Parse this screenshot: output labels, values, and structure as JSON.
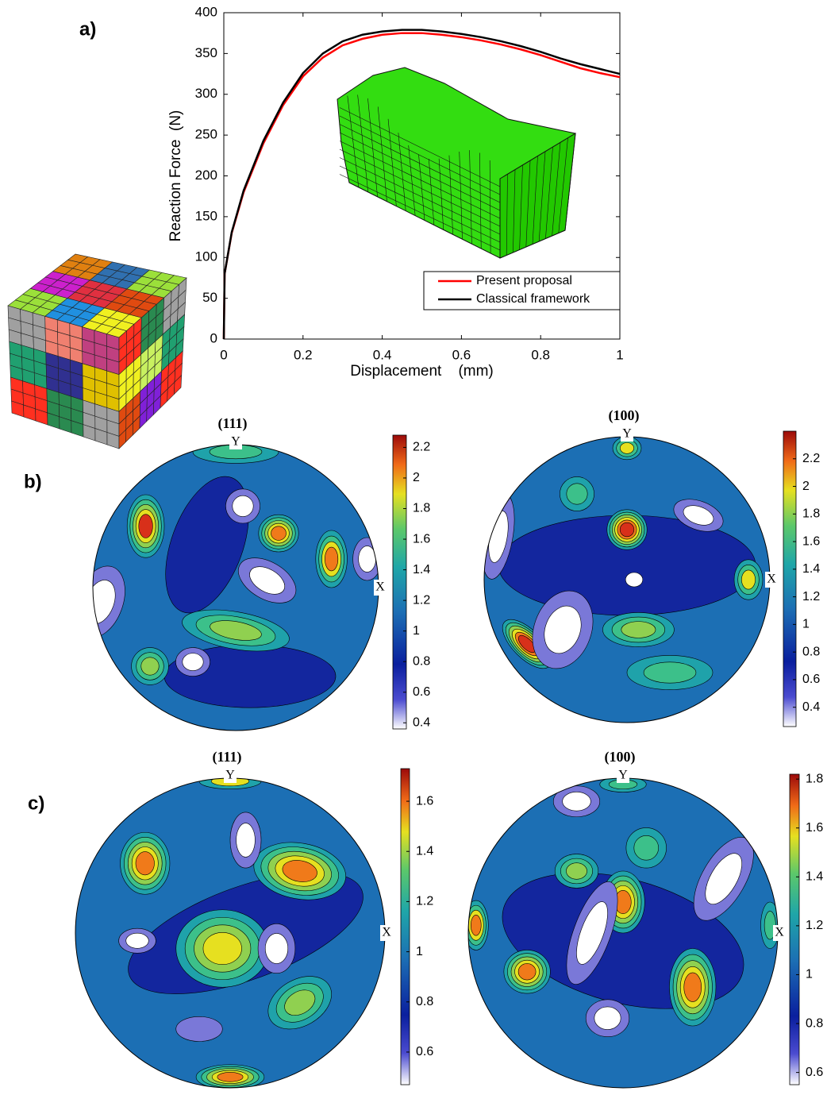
{
  "panel_labels": [
    "a)",
    "b)",
    "c)"
  ],
  "chart_data": [
    {
      "type": "line",
      "xlabel": "Displacement    (mm)",
      "ylabel": "Reaction Force  (N)",
      "x": [
        0,
        0.002,
        0.02,
        0.05,
        0.1,
        0.15,
        0.2,
        0.25,
        0.3,
        0.35,
        0.4,
        0.45,
        0.5,
        0.55,
        0.6,
        0.65,
        0.7,
        0.75,
        0.8,
        0.85,
        0.9,
        0.95,
        1
      ],
      "series": [
        {
          "name": "Present proposal",
          "color": "#ff0000",
          "values": [
            0,
            80,
            130,
            180,
            240,
            287,
            322,
            345,
            360,
            368,
            373,
            375,
            375,
            373,
            370,
            366,
            361,
            355,
            348,
            340,
            332,
            326,
            321
          ]
        },
        {
          "name": "Classical framework",
          "color": "#000000",
          "values": [
            0,
            80,
            131,
            182,
            243,
            290,
            326,
            350,
            365,
            373,
            377,
            379,
            379,
            377,
            374,
            370,
            365,
            359,
            352,
            344,
            337,
            331,
            325
          ]
        }
      ],
      "xlim": [
        0,
        1
      ],
      "ylim": [
        0,
        400
      ],
      "xticks": [
        0,
        0.2,
        0.4,
        0.6,
        0.8,
        1
      ],
      "yticks": [
        0,
        50,
        100,
        150,
        200,
        250,
        300,
        350,
        400
      ],
      "legend": "lower right"
    },
    {
      "type": "pole-figure",
      "title": "(111)",
      "y_axis_label": "Y",
      "x_axis_label": "X",
      "clim": [
        0.36,
        2.28
      ],
      "colorbar_ticks": [
        0.4,
        0.6,
        0.8,
        1,
        1.2,
        1.4,
        1.6,
        1.8,
        2,
        2.2
      ]
    },
    {
      "type": "pole-figure",
      "title": "(100)",
      "y_axis_label": "Y",
      "x_axis_label": "X",
      "clim": [
        0.26,
        2.4
      ],
      "colorbar_ticks": [
        0.4,
        0.6,
        0.8,
        1,
        1.2,
        1.4,
        1.6,
        1.8,
        2,
        2.2
      ]
    },
    {
      "type": "pole-figure",
      "title": "(111)",
      "y_axis_label": "Y",
      "x_axis_label": "X",
      "clim": [
        0.47,
        1.73
      ],
      "colorbar_ticks": [
        0.6,
        0.8,
        1,
        1.2,
        1.4,
        1.6
      ]
    },
    {
      "type": "pole-figure",
      "title": "(100)",
      "y_axis_label": "Y",
      "x_axis_label": "X",
      "clim": [
        0.55,
        1.82
      ],
      "colorbar_ticks": [
        0.6,
        0.8,
        1,
        1.2,
        1.4,
        1.6,
        1.8
      ]
    }
  ]
}
